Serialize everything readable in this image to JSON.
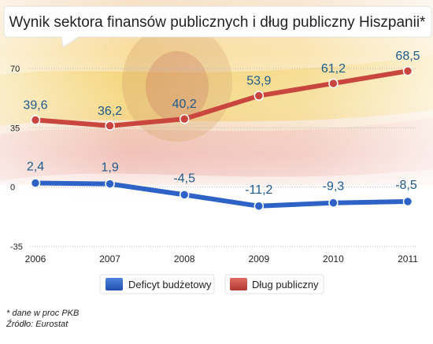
{
  "chart_data": {
    "type": "line",
    "title": "Wynik sektora finansów publicznych i dług publiczny Hiszpanii*",
    "categories": [
      "2006",
      "2007",
      "2008",
      "2009",
      "2010",
      "2011"
    ],
    "yticks": [
      "70",
      "35",
      "0",
      "-35"
    ],
    "ylim": [
      -35,
      70
    ],
    "series": [
      {
        "name": "Dług publiczny",
        "color": "#c8463e",
        "values": [
          39.6,
          36.2,
          40.2,
          53.9,
          61.2,
          68.5
        ],
        "labels": [
          "39,6",
          "36,2",
          "40,2",
          "53,9",
          "61,2",
          "68,5"
        ]
      },
      {
        "name": "Deficyt budżetowy",
        "color": "#2f62c6",
        "values": [
          2.4,
          1.9,
          -4.5,
          -11.2,
          -9.3,
          -8.5
        ],
        "labels": [
          "2,4",
          "1,9",
          "-4,5",
          "-11,2",
          "-9,3",
          "-8,5"
        ]
      }
    ],
    "legend": [
      "Deficyt budżetowy",
      "Dług publiczny"
    ],
    "grid": true
  },
  "footnote": "* dane w proc PKB",
  "source": "Źródło: Eurostat"
}
